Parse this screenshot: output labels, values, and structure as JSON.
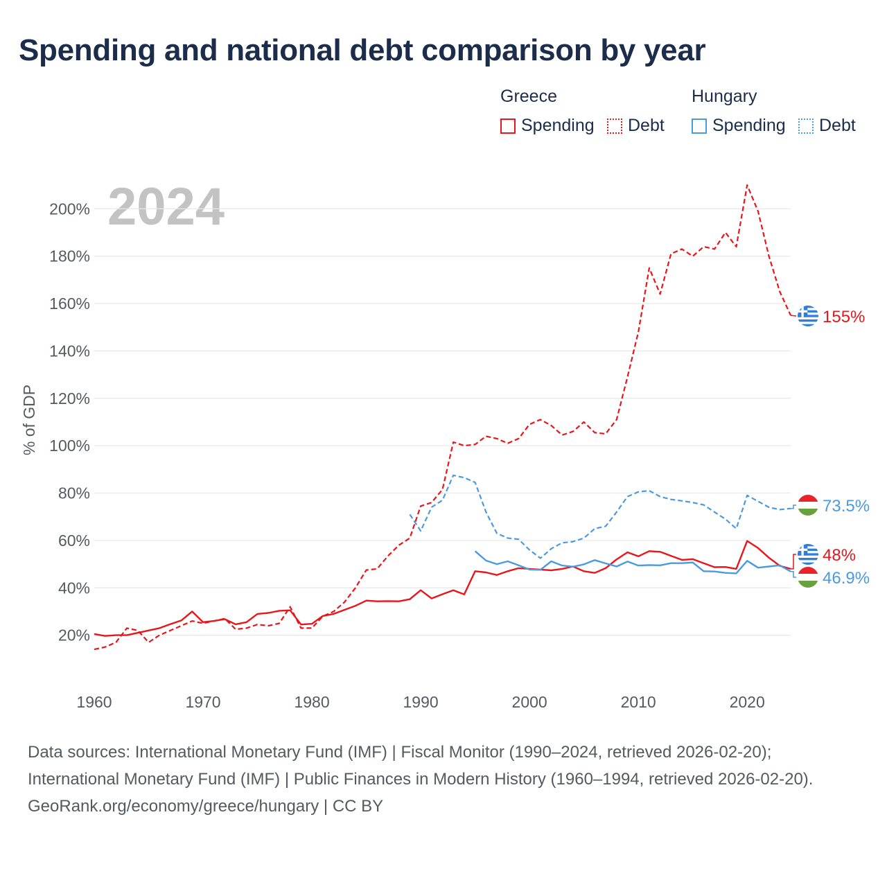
{
  "title": "Spending and national debt comparison by year",
  "legend": {
    "groups": [
      {
        "country": "Greece",
        "spending_label": "Spending",
        "debt_label": "Debt",
        "color": "#e8151b"
      },
      {
        "country": "Hungary",
        "spending_label": "Spending",
        "debt_label": "Debt",
        "color": "#4a9ae0"
      }
    ]
  },
  "footer": {
    "sources": "Data sources: International Monetary Fund (IMF) | Fiscal Monitor (1990–2024, retrieved 2026-02-20); International Monetary Fund (IMF) | Public Finances in Modern History (1960–1994, retrieved 2026-02-20).",
    "credit": "GeoRank.org/economy/greece/hungary | CC BY"
  },
  "chart_data": {
    "type": "line",
    "title": "Spending and national debt comparison by year",
    "year_label": "2024",
    "xlabel": "",
    "ylabel": "% of GDP",
    "xlim": [
      1960,
      2024
    ],
    "ylim": [
      0,
      215
    ],
    "x_ticks": [
      1960,
      1970,
      1980,
      1990,
      2000,
      2010,
      2020
    ],
    "y_ticks": [
      20,
      40,
      60,
      80,
      100,
      120,
      140,
      160,
      180,
      200
    ],
    "y_tick_labels": [
      "20%",
      "40%",
      "60%",
      "80%",
      "100%",
      "120%",
      "140%",
      "160%",
      "180%",
      "200%"
    ],
    "grid": true,
    "series": [
      {
        "name": "Greece Debt",
        "country": "Greece",
        "metric": "Debt",
        "color": "#e8151b",
        "dashed": true,
        "start_year": 1960,
        "values": [
          14,
          15,
          17,
          23,
          22,
          17,
          20,
          22,
          24,
          26,
          25,
          26,
          27,
          22.5,
          23,
          24.5,
          24,
          25,
          32,
          23,
          23,
          28,
          30,
          34,
          40,
          47.5,
          48,
          53.5,
          58,
          61,
          74.5,
          76,
          81.5,
          101.5,
          100,
          100.5,
          104,
          103,
          101,
          103,
          109,
          111,
          108.5,
          104.5,
          106,
          110,
          105.5,
          105,
          111,
          129,
          148,
          175,
          164,
          181,
          183,
          180,
          184,
          183,
          190,
          184,
          210,
          199,
          180,
          165,
          155
        ],
        "end_label": "155%"
      },
      {
        "name": "Greece Spending",
        "country": "Greece",
        "metric": "Spending",
        "color": "#e8151b",
        "dashed": false,
        "start_year": 1960,
        "values": [
          20.5,
          19.7,
          20,
          20,
          21,
          22,
          23,
          24.7,
          26.2,
          30,
          25.5,
          26,
          26.8,
          24.6,
          25.5,
          29,
          29.4,
          30.3,
          30.5,
          24.5,
          24.8,
          28.1,
          29,
          30.7,
          32.4,
          34.6,
          34.3,
          34.4,
          34.3,
          35.2,
          39,
          35.5,
          37.3,
          39,
          37.2,
          47,
          46.5,
          45.4,
          47,
          48.3,
          48,
          47.7,
          47.4,
          48,
          49,
          47,
          46.3,
          48.3,
          52,
          55,
          53.3,
          55.5,
          55.2,
          53.5,
          51.8,
          52.1,
          50.4,
          48.7,
          48.8,
          48,
          59.8,
          56.8,
          52.7,
          49.3,
          48
        ],
        "end_label": "48%"
      },
      {
        "name": "Hungary Debt",
        "country": "Hungary",
        "metric": "Debt",
        "color": "#4a9ae0",
        "dashed": true,
        "start_year": 1989,
        "values": [
          71,
          64,
          74,
          77,
          87.5,
          86.5,
          84.5,
          72,
          63,
          61,
          60.5,
          56,
          52.5,
          56.5,
          59,
          59.5,
          61,
          65,
          66,
          72,
          78.5,
          80.5,
          81,
          78.5,
          77.3,
          76.7,
          76,
          75,
          72,
          69,
          65,
          79,
          76.5,
          74,
          73,
          73.5
        ],
        "end_label": "73.5%"
      },
      {
        "name": "Hungary Spending",
        "country": "Hungary",
        "metric": "Spending",
        "color": "#4a9ae0",
        "dashed": false,
        "start_year": 1995,
        "values": [
          55.5,
          51.5,
          50,
          51.2,
          49.5,
          47.7,
          47.6,
          51.2,
          49.4,
          48.9,
          49.9,
          51.7,
          50.3,
          49,
          51.1,
          49.4,
          49.6,
          49.5,
          50.4,
          50.4,
          50.7,
          47,
          46.9,
          46.3,
          46.1,
          51.4,
          48.5,
          49,
          49.5,
          46.9
        ],
        "end_label": "46.9%"
      }
    ]
  }
}
